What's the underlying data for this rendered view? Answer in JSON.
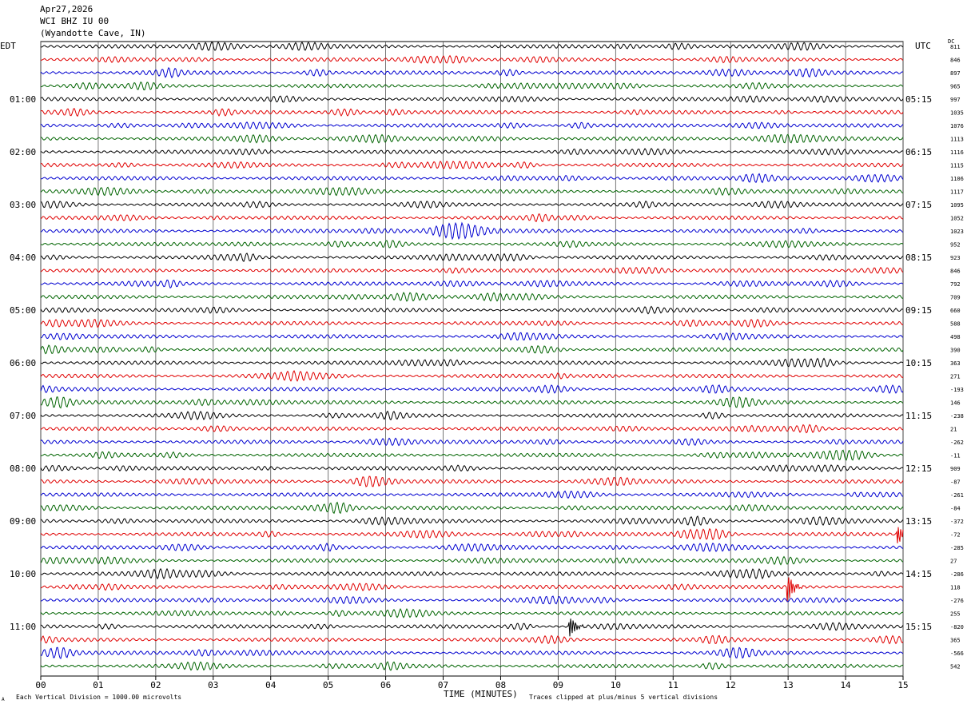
{
  "header": {
    "date": "Apr27,2026",
    "station": "WCI BHZ IU 00",
    "location": "(Wyandotte Cave, IN)"
  },
  "labels": {
    "left_zone": "EDT",
    "right_zone": "UTC",
    "dc": "DC",
    "x_title": "TIME (MINUTES)",
    "scale_note": "Each Vertical Division = 1000.00 microvolts",
    "clip_note": "Traces clipped at plus/minus 5 vertical divisions",
    "corner_mark": "A"
  },
  "colors": [
    "#000000",
    "#e00000",
    "#0000d0",
    "#006400"
  ],
  "chart_data": {
    "type": "line",
    "title": "WCI BHZ IU 00",
    "xlabel": "TIME (MINUTES)",
    "xlim": [
      0,
      15
    ],
    "x_ticks": [
      "00",
      "01",
      "02",
      "03",
      "04",
      "05",
      "06",
      "07",
      "08",
      "09",
      "10",
      "11",
      "12",
      "13",
      "14",
      "15"
    ],
    "traces_per_hour": 4,
    "trace_count": 48,
    "edt_hour_labels": [
      "",
      "01:00",
      "02:00",
      "03:00",
      "04:00",
      "05:00",
      "06:00",
      "07:00",
      "08:00",
      "09:00",
      "10:00",
      "11:00"
    ],
    "utc_hour_labels": [
      "",
      "05:15",
      "06:15",
      "07:15",
      "08:15",
      "09:15",
      "10:15",
      "11:15",
      "12:15",
      "13:15",
      "14:15",
      "15:15"
    ],
    "dc_offsets": [
      "811",
      "846",
      "897",
      "965",
      "997",
      "1035",
      "1076",
      "1113",
      "1116",
      "1115",
      "1106",
      "1117",
      "1095",
      "1052",
      "1023",
      "952",
      "923",
      "846",
      "792",
      "709",
      "660",
      "588",
      "498",
      "390",
      "363",
      "271",
      "-193",
      "146",
      "-238",
      "21",
      "-262",
      "-11",
      "909",
      "-87",
      "-261",
      "-84",
      "-372",
      "-72",
      "-285",
      "27",
      "-286",
      "118",
      "-276",
      "255",
      "-820",
      "365",
      "-566",
      "542"
    ],
    "events": [
      {
        "trace": 37,
        "minute": 14.9,
        "amplitude": 2.0
      },
      {
        "trace": 41,
        "minute": 13.0,
        "amplitude": 2.6
      },
      {
        "trace": 44,
        "minute": 9.2,
        "amplitude": 2.4
      }
    ]
  }
}
